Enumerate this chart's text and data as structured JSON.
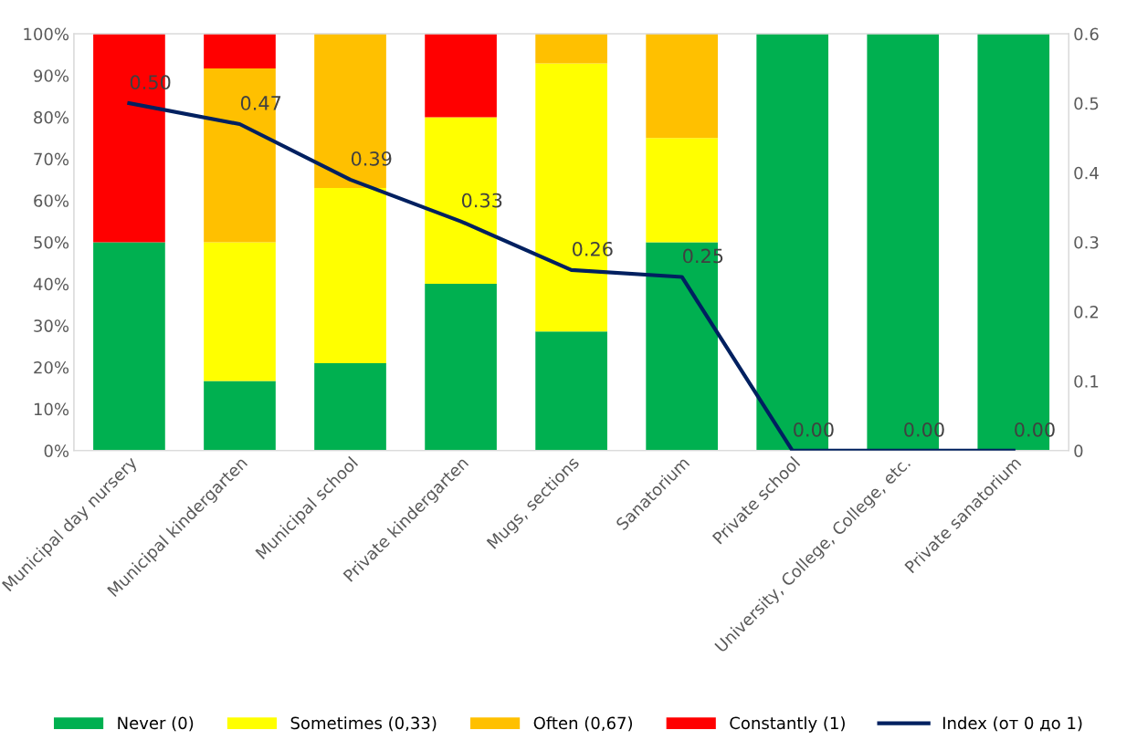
{
  "chart_data": {
    "type": "bar",
    "stacked": true,
    "legend": "bottom",
    "categories": [
      "Municipal day nursery",
      "Municipal kindergarten",
      "Municipal school",
      "Private kindergarten",
      "Mugs, sections",
      "Sanatorium",
      "Private school",
      "University, College, College, etc.",
      "Private sanatorium"
    ],
    "ylim": [
      0,
      100
    ],
    "yticks": [
      {
        "value": 0,
        "label": "0%"
      },
      {
        "value": 10,
        "label": "10%"
      },
      {
        "value": 20,
        "label": "20%"
      },
      {
        "value": 30,
        "label": "30%"
      },
      {
        "value": 40,
        "label": "40%"
      },
      {
        "value": 50,
        "label": "50%"
      },
      {
        "value": 60,
        "label": "60%"
      },
      {
        "value": 70,
        "label": "70%"
      },
      {
        "value": 80,
        "label": "80%"
      },
      {
        "value": 90,
        "label": "90%"
      },
      {
        "value": 100,
        "label": "100%"
      }
    ],
    "y2lim": [
      0,
      0.6
    ],
    "y2ticks": [
      0,
      0.1,
      0.2,
      0.3,
      0.4,
      0.5,
      0.6
    ],
    "series": [
      {
        "name": "Never (0)",
        "color": "#00b050",
        "values": [
          50,
          16.7,
          21,
          40,
          28.6,
          50,
          100,
          100,
          100
        ]
      },
      {
        "name": "Sometimes (0,33)",
        "color": "#ffff00",
        "values": [
          0,
          33.3,
          42,
          40,
          64.3,
          25,
          0,
          0,
          0
        ]
      },
      {
        "name": "Often (0,67)",
        "color": "#ffc000",
        "values": [
          0,
          41.7,
          37,
          0,
          7.1,
          25,
          0,
          0,
          0
        ]
      },
      {
        "name": "Constantly (1)",
        "color": "#ff0000",
        "values": [
          50,
          8.3,
          0,
          20,
          0,
          0,
          0,
          0,
          0
        ]
      },
      {
        "name": "Index (от 0 до 1)",
        "type": "line",
        "axis": "y2",
        "color": "#002060",
        "values": [
          0.5,
          0.47,
          0.39,
          0.33,
          0.26,
          0.25,
          0,
          0,
          0
        ],
        "value_labels": [
          "0.50",
          "0.47",
          "0.39",
          "0.33",
          "0.26",
          "0.25",
          "0.00",
          "0.00",
          "0.00"
        ]
      }
    ]
  }
}
